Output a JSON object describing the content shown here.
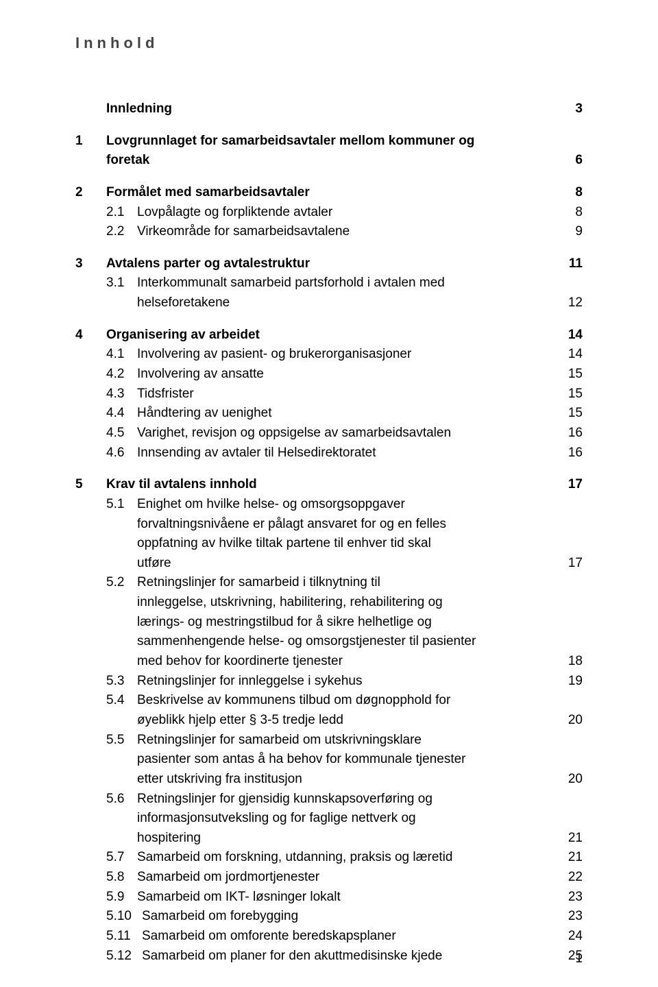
{
  "title": "Innhold",
  "page_number": "1",
  "toc": [
    {
      "type": "top",
      "num": "",
      "text": "Innledning",
      "page": "3",
      "bold": true
    },
    {
      "type": "gap"
    },
    {
      "type": "top",
      "num": "1",
      "text": "Lovgrunnlaget for samarbeidsavtaler mellom kommuner og foretak",
      "page": "6",
      "bold": true,
      "wrap": true
    },
    {
      "type": "gap"
    },
    {
      "type": "top",
      "num": "2",
      "text": "Formålet med samarbeidsavtaler",
      "page": "8",
      "bold": true
    },
    {
      "type": "sub",
      "num": "2.1",
      "text": "Lovpålagte og forpliktende avtaler",
      "page": "8"
    },
    {
      "type": "sub",
      "num": "2.2",
      "text": "Virkeområde for samarbeidsavtalene",
      "page": "9"
    },
    {
      "type": "gap"
    },
    {
      "type": "top",
      "num": "3",
      "text": "Avtalens parter og avtalestruktur",
      "page": "11",
      "bold": true
    },
    {
      "type": "sub",
      "num": "3.1",
      "text": "Interkommunalt samarbeid partsforhold i avtalen med helseforetakene",
      "page": "12",
      "wrap": true
    },
    {
      "type": "gap"
    },
    {
      "type": "top",
      "num": "4",
      "text": "Organisering av arbeidet",
      "page": "14",
      "bold": true
    },
    {
      "type": "sub",
      "num": "4.1",
      "text": "Involvering av pasient- og brukerorganisasjoner",
      "page": "14"
    },
    {
      "type": "sub",
      "num": "4.2",
      "text": "Involvering av ansatte",
      "page": "15"
    },
    {
      "type": "sub",
      "num": "4.3",
      "text": "Tidsfrister",
      "page": "15"
    },
    {
      "type": "sub",
      "num": "4.4",
      "text": "Håndtering av uenighet",
      "page": "15"
    },
    {
      "type": "sub",
      "num": "4.5",
      "text": "Varighet, revisjon og oppsigelse av samarbeidsavtalen",
      "page": "16"
    },
    {
      "type": "sub",
      "num": "4.6",
      "text": "Innsending av avtaler til Helsedirektoratet",
      "page": "16"
    },
    {
      "type": "gap"
    },
    {
      "type": "top",
      "num": "5",
      "text": "Krav til avtalens innhold",
      "page": "17",
      "bold": true
    },
    {
      "type": "sub",
      "num": "5.1",
      "text": "Enighet om hvilke helse- og omsorgsoppgaver forvaltningsnivåene er pålagt ansvaret for og en felles oppfatning av hvilke tiltak partene til enhver tid skal utføre",
      "page": "17",
      "wrap": true
    },
    {
      "type": "sub",
      "num": "5.2",
      "text": "Retningslinjer for samarbeid i tilknytning til innleggelse, utskrivning, habilitering, rehabilitering og lærings- og mestringstilbud for å sikre helhetlige og sammenhengende helse- og omsorgstjenester til pasienter med behov for koordinerte tjenester",
      "page": "18",
      "wrap": true
    },
    {
      "type": "sub",
      "num": "5.3",
      "text": "Retningslinjer for innleggelse i sykehus",
      "page": "19"
    },
    {
      "type": "sub",
      "num": "5.4",
      "text": "Beskrivelse av kommunens tilbud om døgnopphold for øyeblikk hjelp etter § 3-5 tredje ledd",
      "page": "20",
      "wrap": true
    },
    {
      "type": "sub",
      "num": "5.5",
      "text": "Retningslinjer for samarbeid om utskrivningsklare pasienter som antas å ha behov for kommunale tjenester etter utskriving fra institusjon",
      "page": "20",
      "wrap": true,
      "tight": true
    },
    {
      "type": "sub",
      "num": "5.6",
      "text": "Retningslinjer for gjensidig kunnskapsoverføring og informasjonsutveksling og for faglige nettverk og hospitering",
      "page": "21",
      "wrap": true
    },
    {
      "type": "sub",
      "num": "5.7",
      "text": "Samarbeid om forskning, utdanning, praksis og læretid",
      "page": "21"
    },
    {
      "type": "sub",
      "num": "5.8",
      "text": "Samarbeid om jordmortjenester",
      "page": "22"
    },
    {
      "type": "sub",
      "num": "5.9",
      "text": "Samarbeid om IKT- løsninger lokalt",
      "page": "23"
    },
    {
      "type": "sub",
      "num": "5.10",
      "text": "Samarbeid om forebygging",
      "page": "23"
    },
    {
      "type": "sub",
      "num": "5.11",
      "text": "Samarbeid om omforente beredskapsplaner",
      "page": "24"
    },
    {
      "type": "sub",
      "num": "5.12",
      "text": "Samarbeid om planer for den akuttmedisinske kjede",
      "page": "25"
    }
  ]
}
